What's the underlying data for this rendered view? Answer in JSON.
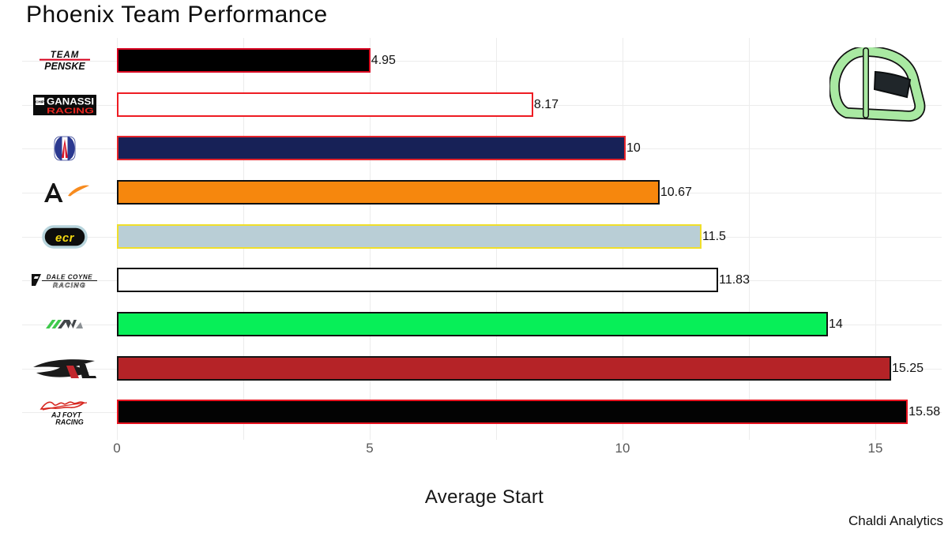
{
  "title": "Phoenix Team Performance",
  "credit": {
    "text": "Chaldi Analytics"
  },
  "chart_data": {
    "type": "bar",
    "orientation": "horizontal",
    "title": "Phoenix Team Performance",
    "xlabel": "Average Start",
    "ylabel": "",
    "xlim": [
      0,
      16.4
    ],
    "grid": true,
    "legend": false,
    "background_color": "#ffffff",
    "gridline_color": "#ececec",
    "x_tick_labels": [
      "0",
      "5",
      "10",
      "15"
    ],
    "x_tick_values": [
      0,
      5,
      10,
      15
    ],
    "x_gridline_values": [
      0,
      2.5,
      5,
      7.5,
      10,
      12.5,
      15
    ],
    "categories": [
      "Team Penske",
      "Chip Ganassi Racing",
      "Andretti Autosport",
      "Arrow McLaren",
      "Ed Carpenter Racing",
      "Dale Coyne Racing",
      "Juncos Hollinger Racing",
      "Rahal Letterman Lanigan Racing",
      "AJ Foyt Racing"
    ],
    "values": [
      4.95,
      8.17,
      10,
      10.67,
      11.5,
      11.83,
      14,
      15.25,
      15.58
    ],
    "rows": [
      {
        "team": "Team Penske",
        "logo_icon": "team-penske-logo",
        "value": 4.95,
        "label": "4.95",
        "fill": "#000000",
        "border": "#d8001f"
      },
      {
        "team": "Chip Ganassi Racing",
        "logo_icon": "chip-ganassi-racing-logo",
        "value": 8.17,
        "label": "8.17",
        "fill": "#ffffff",
        "border": "#ee1c23"
      },
      {
        "team": "Andretti Autosport",
        "logo_icon": "andretti-logo",
        "value": 10,
        "label": "10",
        "fill": "#172157",
        "border": "#e4242b"
      },
      {
        "team": "Arrow McLaren",
        "logo_icon": "arrow-mclaren-logo",
        "value": 10.67,
        "label": "10.67",
        "fill": "#f6870d",
        "border": "#101010"
      },
      {
        "team": "Ed Carpenter Racing",
        "logo_icon": "ed-carpenter-racing-logo",
        "value": 11.5,
        "label": "11.5",
        "fill": "#b9ced6",
        "border": "#f0df2a"
      },
      {
        "team": "Dale Coyne Racing",
        "logo_icon": "dale-coyne-racing-logo",
        "value": 11.83,
        "label": "11.83",
        "fill": "#ffffff",
        "border": "#111111"
      },
      {
        "team": "Juncos Hollinger Racing",
        "logo_icon": "juncos-hollinger-racing-logo",
        "value": 14,
        "label": "14",
        "fill": "#07ef58",
        "border": "#111111"
      },
      {
        "team": "Rahal Letterman Lanigan Racing",
        "logo_icon": "rll-racing-logo",
        "value": 15.25,
        "label": "15.25",
        "fill": "#b52327",
        "border": "#131313"
      },
      {
        "team": "AJ Foyt Racing",
        "logo_icon": "aj-foyt-racing-logo",
        "value": 15.58,
        "label": "15.58",
        "fill": "#030303",
        "border": "#e8131f"
      }
    ]
  },
  "watermark": {
    "icon": "helmet-icon",
    "color": "#a9e9a2"
  }
}
